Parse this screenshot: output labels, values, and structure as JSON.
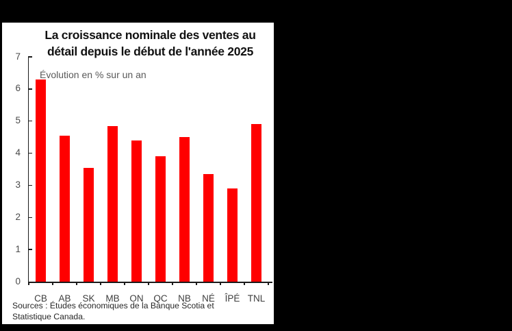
{
  "window": {
    "background_color": "#000000",
    "panel_color": "#ffffff"
  },
  "chart_data": {
    "type": "bar",
    "title": "La croissance nominale des ventes au détail depuis le début de l'année 2025",
    "title_lines": [
      "La croissance nominale des ventes au",
      "détail depuis le début de l'année 2025"
    ],
    "subtitle": "Évolution en % sur un an",
    "categories": [
      "CB",
      "AB",
      "SK",
      "MB",
      "ON",
      "QC",
      "NB",
      "NÉ",
      "ÎPÉ",
      "TNL"
    ],
    "values": [
      6.3,
      4.55,
      3.55,
      4.85,
      4.4,
      3.9,
      4.5,
      3.35,
      2.9,
      4.9
    ],
    "ylim": [
      0,
      7
    ],
    "yticks": [
      0,
      1,
      2,
      3,
      4,
      5,
      6,
      7
    ],
    "bar_color": "#ff0000",
    "axis_color": "#1a1a1a",
    "grid": false,
    "legend_position": "none",
    "source_lines": [
      "Sources : Études économiques de la Banque Scotia et",
      "Statistique Canada."
    ]
  }
}
